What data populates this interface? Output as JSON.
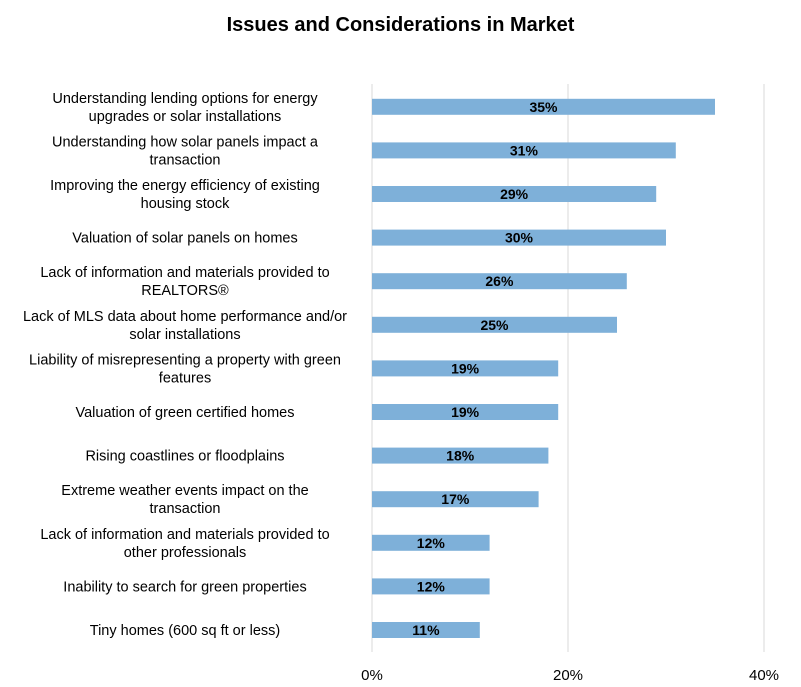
{
  "chart_data": {
    "type": "bar",
    "orientation": "horizontal",
    "title": "Issues and Considerations in Market",
    "categories": [
      [
        "Understanding lending options for energy",
        "upgrades or solar installations"
      ],
      [
        "Understanding how solar panels impact a",
        "transaction"
      ],
      [
        "Improving the energy efficiency of existing",
        "housing stock"
      ],
      [
        "Valuation of solar panels on homes"
      ],
      [
        "Lack of information and materials provided to",
        "REALTORS®"
      ],
      [
        "Lack of MLS data about home performance and/or",
        "solar installations"
      ],
      [
        "Liability of misrepresenting a property with green",
        "features"
      ],
      [
        "Valuation of green certified homes"
      ],
      [
        "Rising coastlines or floodplains"
      ],
      [
        "Extreme weather events impact on the",
        "transaction"
      ],
      [
        "Lack of information and materials provided to",
        "other professionals"
      ],
      [
        "Inability to search for green properties"
      ],
      [
        "Tiny homes (600 sq ft or less)"
      ]
    ],
    "values": [
      35,
      31,
      29,
      30,
      26,
      25,
      19,
      19,
      18,
      17,
      12,
      12,
      11
    ],
    "value_labels": [
      "35%",
      "31%",
      "29%",
      "30%",
      "26%",
      "25%",
      "19%",
      "19%",
      "18%",
      "17%",
      "12%",
      "12%",
      "11%"
    ],
    "xlim": [
      0,
      40
    ],
    "xticks": [
      0,
      20,
      40
    ],
    "xtick_labels": [
      "0%",
      "20%",
      "40%"
    ],
    "grid": true,
    "bar_color": "#7eb0d9",
    "grid_color": "#d9d9d9"
  }
}
